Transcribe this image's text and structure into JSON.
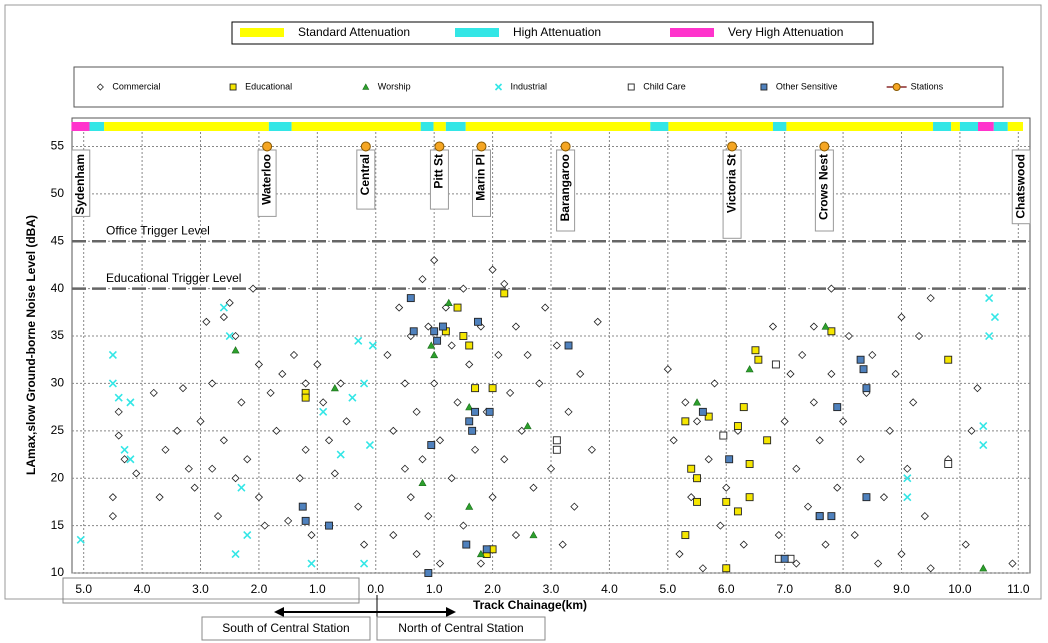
{
  "chart_data": {
    "type": "scatter",
    "xlabel": "Track Chainage(km)",
    "ylabel": "LAmax,slow Ground-borne Noise Level (dBA)",
    "xlim": [
      -5.2,
      11.2
    ],
    "ylim": [
      10,
      58
    ],
    "xticks": [
      {
        "value": -5,
        "label": "5.0"
      },
      {
        "value": -4,
        "label": "4.0"
      },
      {
        "value": -3,
        "label": "3.0"
      },
      {
        "value": -2,
        "label": "2.0"
      },
      {
        "value": -1,
        "label": "1.0"
      },
      {
        "value": 0,
        "label": "0.0"
      },
      {
        "value": 1,
        "label": "1.0"
      },
      {
        "value": 2,
        "label": "2.0"
      },
      {
        "value": 3,
        "label": "3.0"
      },
      {
        "value": 4,
        "label": "4.0"
      },
      {
        "value": 5,
        "label": "5.0"
      },
      {
        "value": 6,
        "label": "6.0"
      },
      {
        "value": 7,
        "label": "7.0"
      },
      {
        "value": 8,
        "label": "8.0"
      },
      {
        "value": 9,
        "label": "9.0"
      },
      {
        "value": 10,
        "label": "10.0"
      },
      {
        "value": 11,
        "label": "11.0"
      }
    ],
    "yticks": [
      10,
      15,
      20,
      25,
      30,
      35,
      40,
      45,
      50,
      55
    ],
    "grid": true,
    "attenuation": {
      "classes": [
        {
          "name": "Standard Attenuation",
          "color": "#ffff00"
        },
        {
          "name": "High Attenuation",
          "color": "#33e6e6"
        },
        {
          "name": "Very High Attenuation",
          "color": "#ff33cc"
        }
      ],
      "segments": [
        {
          "class": 2,
          "start": -5.21,
          "end": -4.9
        },
        {
          "class": 1,
          "start": -4.9,
          "end": -4.65
        },
        {
          "class": 0,
          "start": -4.65,
          "end": -1.83
        },
        {
          "class": 1,
          "start": -1.83,
          "end": -1.44
        },
        {
          "class": 0,
          "start": -1.44,
          "end": 0.77
        },
        {
          "class": 1,
          "start": 0.77,
          "end": 0.99
        },
        {
          "class": 0,
          "start": 0.99,
          "end": 1.2
        },
        {
          "class": 1,
          "start": 1.2,
          "end": 1.54
        },
        {
          "class": 0,
          "start": 1.54,
          "end": 4.7
        },
        {
          "class": 1,
          "start": 4.7,
          "end": 5.01
        },
        {
          "class": 0,
          "start": 5.01,
          "end": 6.8
        },
        {
          "class": 1,
          "start": 6.8,
          "end": 7.03
        },
        {
          "class": 0,
          "start": 7.03,
          "end": 9.54
        },
        {
          "class": 1,
          "start": 9.54,
          "end": 9.85
        },
        {
          "class": 0,
          "start": 9.85,
          "end": 10.0
        },
        {
          "class": 1,
          "start": 10.0,
          "end": 10.31
        },
        {
          "class": 2,
          "start": 10.31,
          "end": 10.58
        },
        {
          "class": 1,
          "start": 10.58,
          "end": 10.82
        },
        {
          "class": 0,
          "start": 10.82,
          "end": 11.08
        }
      ]
    },
    "trigger_levels": [
      {
        "label": "Office Trigger Level",
        "value": 45
      },
      {
        "label": "Educational Trigger Level",
        "value": 40
      }
    ],
    "stations": {
      "name": "Stations",
      "color": "#f5a623",
      "labels": [
        "Sydenham",
        "Waterloo",
        "Central",
        "Pitt St",
        "Marin Pl",
        "Barangaroo",
        "Victoria St",
        "Crows Nest",
        "Chatswood"
      ],
      "x": [
        -5.05,
        -1.86,
        -0.17,
        1.09,
        1.81,
        3.25,
        6.1,
        7.68,
        11.05
      ],
      "values": [
        null,
        55,
        55,
        55,
        55,
        55,
        55,
        55,
        null
      ]
    },
    "series": [
      {
        "name": "Commercial",
        "color": "#ffffff",
        "marker": "diamond",
        "x": [
          -4.5,
          -4.5,
          -4.4,
          -4.4,
          -4.3,
          -4.1,
          -3.8,
          -3.7,
          -3.6,
          -3.4,
          -3.3,
          -3.2,
          -3.1,
          -3.0,
          -2.9,
          -2.8,
          -2.8,
          -2.7,
          -2.6,
          -2.6,
          -2.5,
          -2.4,
          -2.4,
          -2.3,
          -2.2,
          -2.1,
          -2.0,
          -2.0,
          -1.9,
          -1.8,
          -1.7,
          -1.6,
          -1.5,
          -1.4,
          -1.3,
          -1.2,
          -1.2,
          -1.1,
          -1.0,
          -0.9,
          -0.8,
          -0.7,
          -0.6,
          -0.5,
          -0.3,
          -0.2,
          0.2,
          0.3,
          0.3,
          0.4,
          0.5,
          0.5,
          0.6,
          0.6,
          0.7,
          0.7,
          0.8,
          0.8,
          0.9,
          0.9,
          1.0,
          1.0,
          1.1,
          1.1,
          1.2,
          1.3,
          1.3,
          1.4,
          1.5,
          1.5,
          1.6,
          1.7,
          1.8,
          1.8,
          1.9,
          2.0,
          2.0,
          2.1,
          2.2,
          2.2,
          2.3,
          2.4,
          2.4,
          2.5,
          2.6,
          2.7,
          2.8,
          2.9,
          3.0,
          3.1,
          3.2,
          3.3,
          3.4,
          3.5,
          3.7,
          3.8,
          5.0,
          5.1,
          5.2,
          5.3,
          5.4,
          5.5,
          5.6,
          5.7,
          5.8,
          5.9,
          6.0,
          6.2,
          6.3,
          6.8,
          6.9,
          7.0,
          7.1,
          7.2,
          7.2,
          7.3,
          7.4,
          7.5,
          7.5,
          7.6,
          7.7,
          7.8,
          7.8,
          7.9,
          8.0,
          8.1,
          8.2,
          8.3,
          8.4,
          8.5,
          8.6,
          8.7,
          8.8,
          8.9,
          9.0,
          9.0,
          9.1,
          9.2,
          9.3,
          9.4,
          9.5,
          9.5,
          9.8,
          10.1,
          10.2,
          10.3,
          10.9
        ],
        "values": [
          16,
          18,
          24.5,
          27,
          22,
          20.5,
          29,
          18,
          23,
          25,
          29.5,
          21,
          19,
          26,
          36.5,
          21,
          30,
          16,
          37,
          24,
          38.5,
          35,
          20,
          28,
          22,
          40,
          32,
          18,
          15,
          29,
          25,
          31,
          15.5,
          33,
          20,
          23,
          30,
          14,
          32,
          28,
          24,
          20.5,
          30,
          26,
          17,
          13,
          33,
          25,
          14,
          38,
          21,
          30,
          18,
          35,
          12,
          27,
          41,
          22,
          36,
          16,
          43,
          30,
          24,
          11,
          38,
          34,
          20,
          28,
          40,
          15,
          32,
          23,
          36,
          11,
          27,
          42,
          18,
          33,
          40.5,
          22,
          29,
          36,
          14,
          25,
          33,
          19,
          30,
          38,
          21,
          34,
          13,
          27,
          17,
          31,
          23,
          36.5,
          31.5,
          24,
          12,
          28,
          18,
          26,
          10.5,
          22,
          30,
          15,
          19,
          25,
          13,
          36,
          14,
          26,
          31,
          11,
          21,
          33,
          17,
          28,
          36,
          24,
          13,
          40,
          31,
          19,
          26,
          35,
          14,
          22,
          29,
          33,
          11,
          18,
          25,
          31,
          37,
          12,
          21,
          28,
          35,
          16,
          39,
          10.5,
          22,
          13,
          25,
          29.5,
          11
        ]
      },
      {
        "name": "Educational",
        "color": "#f5e600",
        "marker": "square",
        "x": [
          -1.2,
          -1.2,
          1.2,
          1.4,
          1.6,
          1.7,
          2.0,
          2.2,
          1.9,
          2.0,
          1.5,
          5.3,
          5.4,
          5.5,
          5.3,
          5.5,
          5.7,
          6.0,
          6.0,
          6.2,
          6.3,
          6.4,
          6.4,
          6.5,
          6.55,
          6.7,
          7.8,
          9.8,
          6.2
        ],
        "values": [
          29,
          28.5,
          35.5,
          38,
          34,
          29.5,
          29.5,
          39.5,
          12,
          12.5,
          35,
          14,
          21,
          17.5,
          26,
          20,
          26.5,
          17.5,
          10.5,
          16.5,
          27.5,
          18,
          21.5,
          33.5,
          32.5,
          24,
          35.5,
          32.5,
          25.5
        ]
      },
      {
        "name": "Worship",
        "color": "#2ca02c",
        "marker": "triangle",
        "x": [
          -2.4,
          -0.7,
          0.95,
          1.0,
          1.25,
          1.6,
          1.6,
          1.8,
          2.7,
          2.6,
          5.5,
          6.4,
          7.7,
          10.4,
          0.8
        ],
        "values": [
          33.5,
          29.5,
          34,
          33,
          38.5,
          27.5,
          17,
          12,
          14,
          25.5,
          28,
          31.5,
          36,
          10.5,
          19.5
        ]
      },
      {
        "name": "Industrial",
        "color": "#33e6e6",
        "marker": "x",
        "x": [
          -5.05,
          -4.5,
          -4.5,
          -4.4,
          -4.3,
          -4.2,
          -4.2,
          -2.6,
          -2.5,
          -2.3,
          -2.2,
          -2.4,
          -1.1,
          -0.9,
          -0.6,
          -0.4,
          -0.3,
          -0.2,
          -0.1,
          -0.05,
          -0.2,
          9.1,
          9.1,
          10.4,
          10.4,
          10.5,
          10.5,
          10.6
        ],
        "values": [
          13.5,
          33,
          30,
          28.5,
          23,
          22,
          28,
          38,
          35,
          19,
          14,
          12,
          11,
          27,
          22.5,
          28.5,
          34.5,
          30,
          23.5,
          34,
          11,
          18,
          20,
          25.5,
          23.5,
          35,
          39,
          37
        ]
      },
      {
        "name": "Child Care",
        "color": "#ffffff",
        "marker": "square",
        "x": [
          3.1,
          3.1,
          6.85,
          6.9,
          7.1,
          7.6,
          9.8,
          5.95
        ],
        "values": [
          24,
          23,
          32,
          11.5,
          11.5,
          16,
          21.5,
          24.5
        ]
      },
      {
        "name": "Other Sensitive",
        "color": "#4f81bd",
        "marker": "square",
        "x": [
          -1.25,
          -1.2,
          -0.8,
          0.6,
          0.65,
          0.95,
          0.9,
          1.0,
          1.05,
          1.15,
          1.55,
          1.6,
          1.7,
          1.65,
          1.75,
          1.9,
          3.3,
          5.6,
          6.05,
          7.0,
          7.6,
          7.8,
          7.9,
          8.3,
          8.35,
          8.4,
          8.4,
          1.95
        ],
        "values": [
          17,
          15.5,
          15,
          39,
          35.5,
          23.5,
          10,
          35.5,
          34.5,
          36,
          13,
          26,
          27,
          25,
          36.5,
          12.5,
          34,
          27,
          22,
          11.5,
          16,
          16,
          27.5,
          32.5,
          31.5,
          29.5,
          18,
          27
        ]
      }
    ],
    "direction_labels": [
      "South of Central Station",
      "North of Central Station"
    ]
  }
}
